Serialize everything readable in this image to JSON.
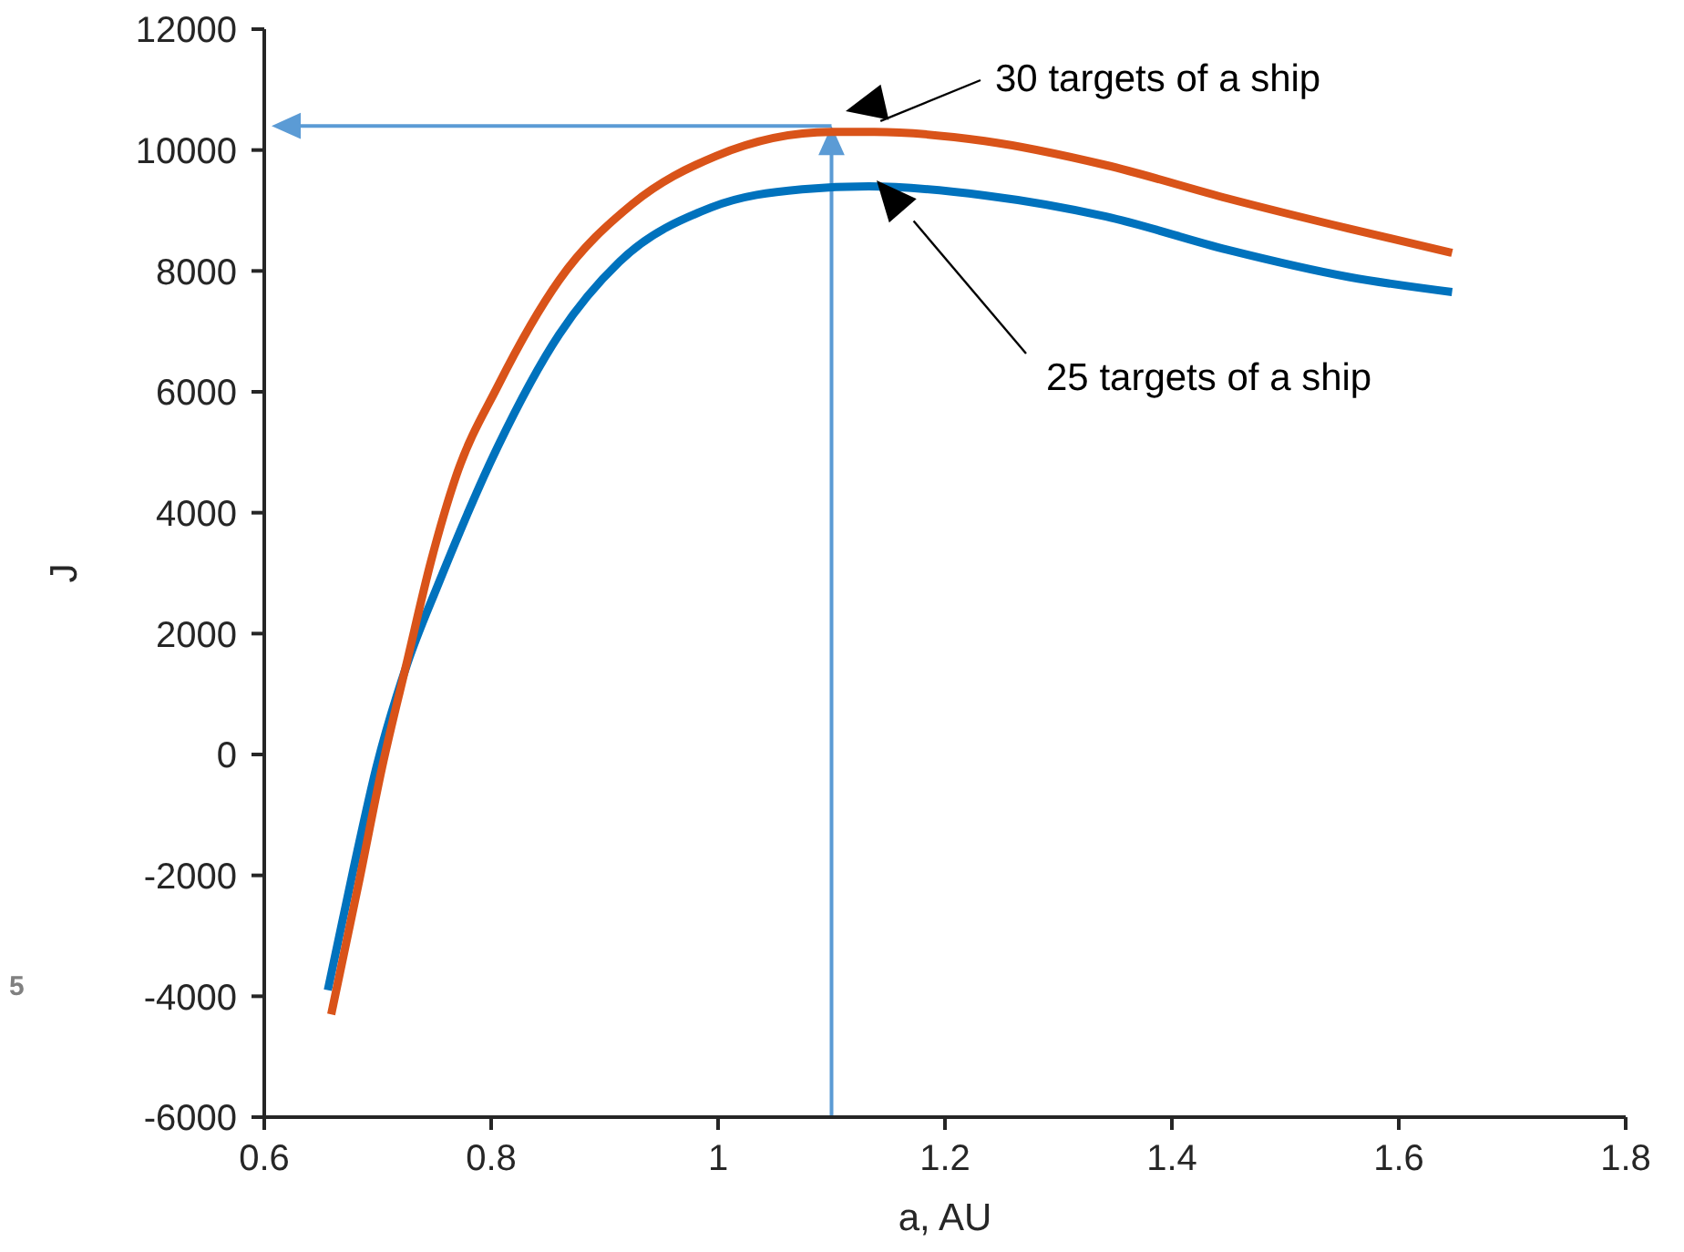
{
  "chart_data": {
    "type": "line",
    "xlabel": "a, AU",
    "ylabel": "J",
    "xlim": [
      0.6,
      1.8
    ],
    "xticks": [
      0.6,
      0.8,
      1,
      1.2,
      1.4,
      1.6,
      1.8
    ],
    "ylim": [
      -6000,
      12000
    ],
    "yticks": [
      -6000,
      -4000,
      -2000,
      0,
      2000,
      4000,
      6000,
      8000,
      10000,
      12000
    ],
    "marker": "none",
    "line_style": "solid",
    "grid": false,
    "series": [
      {
        "color": "#0072bd",
        "x": [
          0.656,
          0.678,
          0.699,
          0.726,
          0.753,
          0.806,
          0.86,
          0.913,
          0.994,
          1.074,
          1.133,
          1.235,
          1.342,
          1.449,
          1.556,
          1.647
        ],
        "values": [
          -3900,
          -1950,
          -200,
          1500,
          2800,
          5100,
          6950,
          8150,
          9050,
          9350,
          9400,
          9250,
          8900,
          8350,
          7900,
          7650
        ]
      },
      {
        "color": "#d95319",
        "x": [
          0.659,
          0.683,
          0.704,
          0.726,
          0.747,
          0.769,
          0.806,
          0.86,
          0.924,
          0.998,
          1.1,
          1.138,
          1.235,
          1.342,
          1.449,
          1.556,
          1.647
        ],
        "values": [
          -4300,
          -2150,
          -200,
          1550,
          3200,
          4600,
          6100,
          7850,
          9100,
          9900,
          10300,
          10300,
          10150,
          9750,
          9200,
          8700,
          8300
        ]
      }
    ],
    "ref_lines": [
      {
        "axis": "x",
        "value": 1.1,
        "color": "#5b9bd5"
      },
      {
        "axis": "y",
        "value": 10400,
        "color": "#5b9bd5"
      }
    ],
    "annotations": [
      "30 targets of a ship",
      "25 targets of a ship",
      "5"
    ]
  }
}
